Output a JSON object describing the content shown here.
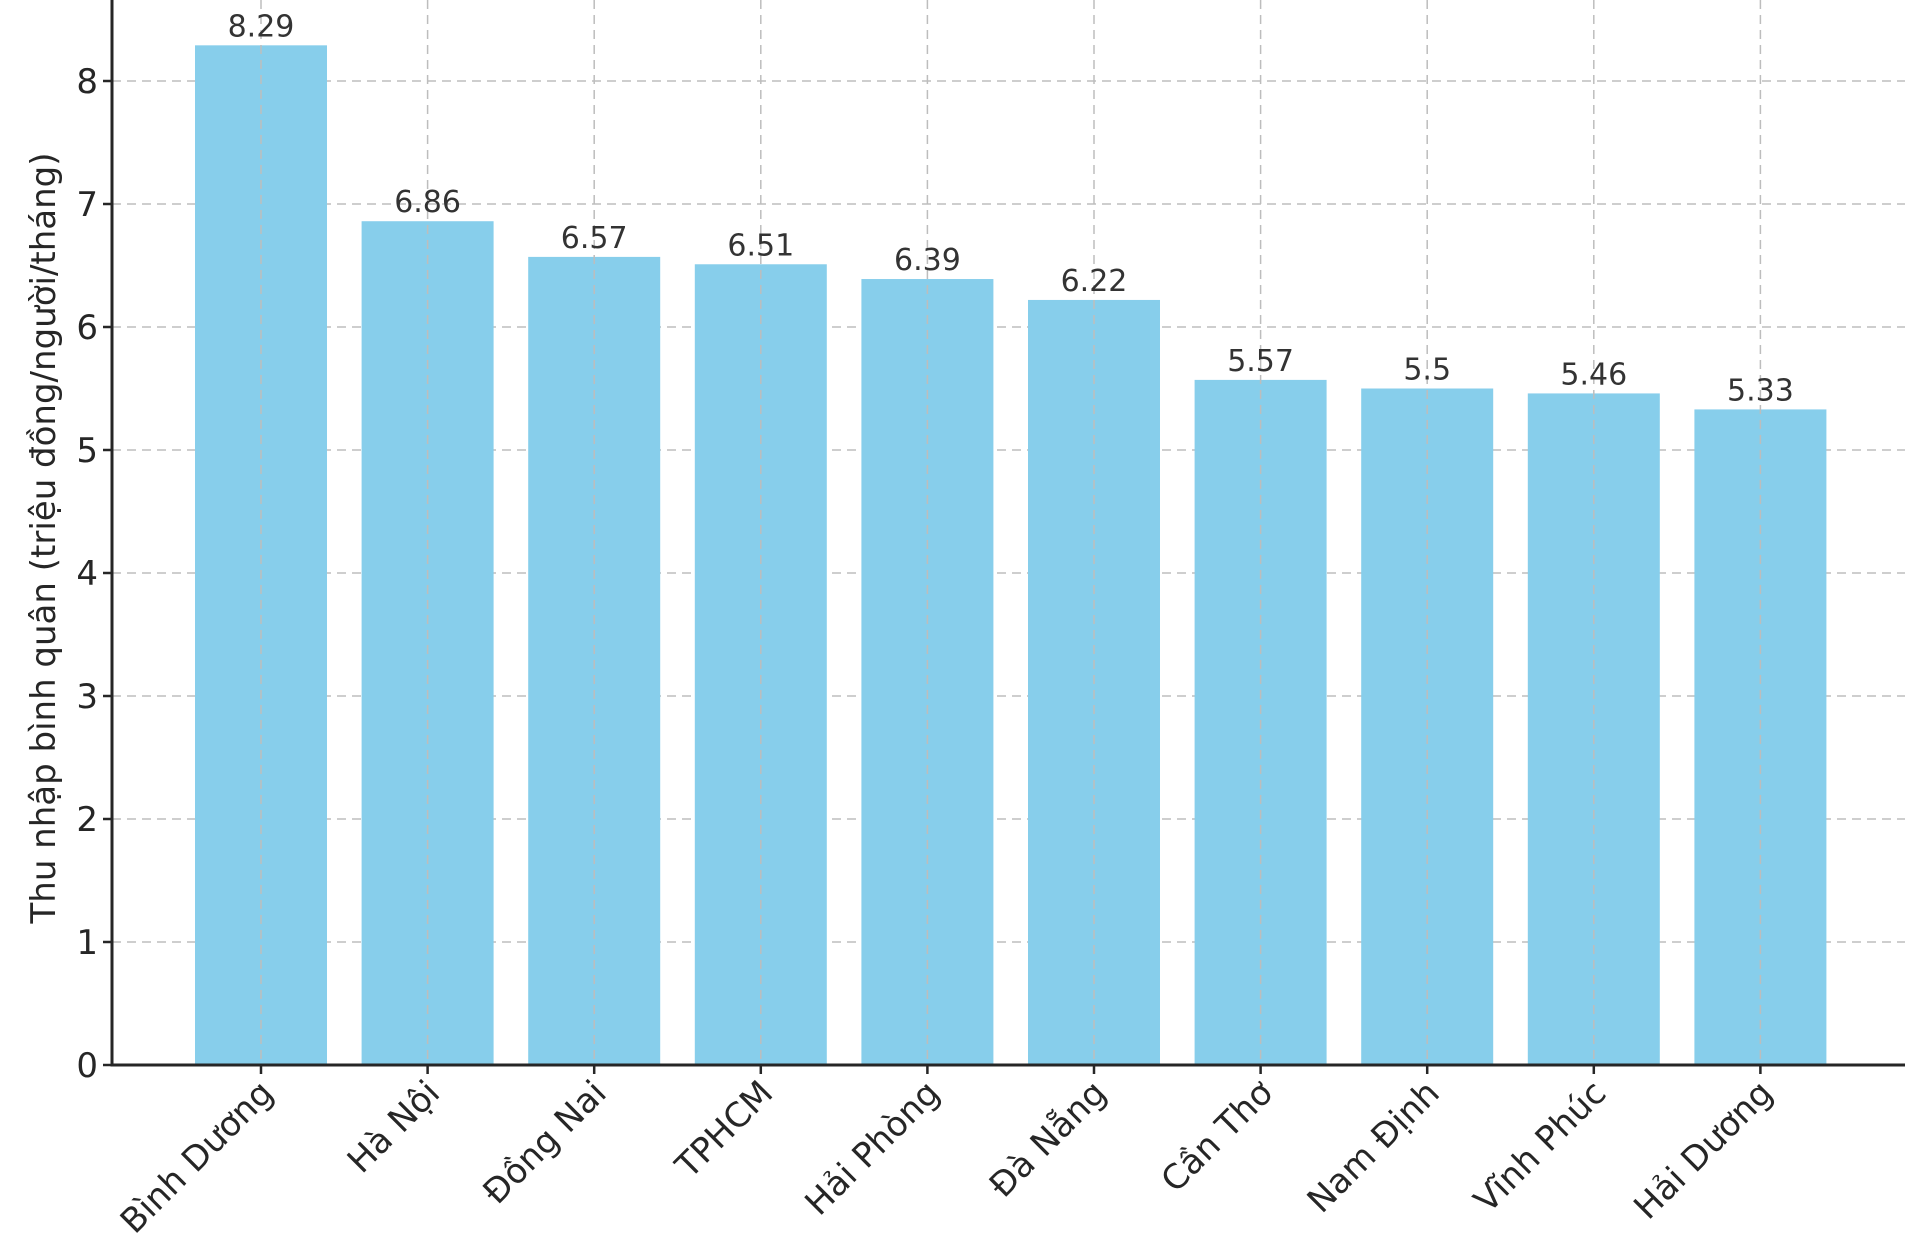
{
  "chart_data": {
    "type": "bar",
    "categories": [
      "Bình Dương",
      "Hà Nội",
      "Đồng Nai",
      "TPHCM",
      "Hải Phòng",
      "Đà Nẵng",
      "Cần Thơ",
      "Nam Định",
      "Vĩnh Phúc",
      "Hải Dương"
    ],
    "values": [
      8.29,
      6.86,
      6.57,
      6.51,
      6.39,
      6.22,
      5.57,
      5.5,
      5.46,
      5.33
    ],
    "data_labels": [
      "8.29",
      "6.86",
      "6.57",
      "6.51",
      "6.39",
      "6.22",
      "5.57",
      "5.5",
      "5.46",
      "5.33"
    ],
    "title": "",
    "xlabel": "",
    "ylabel": "Thu nhập bình quân (triệu đồng/người/tháng)",
    "ylim": [
      0,
      8.6
    ],
    "yticks": [
      0,
      1,
      2,
      3,
      4,
      5,
      6,
      7,
      8
    ],
    "ytick_labels": [
      "0",
      "1",
      "2",
      "3",
      "4",
      "5",
      "6",
      "7",
      "8"
    ],
    "grid": true,
    "legend": "none",
    "bar_color": "#87ceeb",
    "grid_color": "#bdbdbd",
    "axis_color": "#262626"
  }
}
